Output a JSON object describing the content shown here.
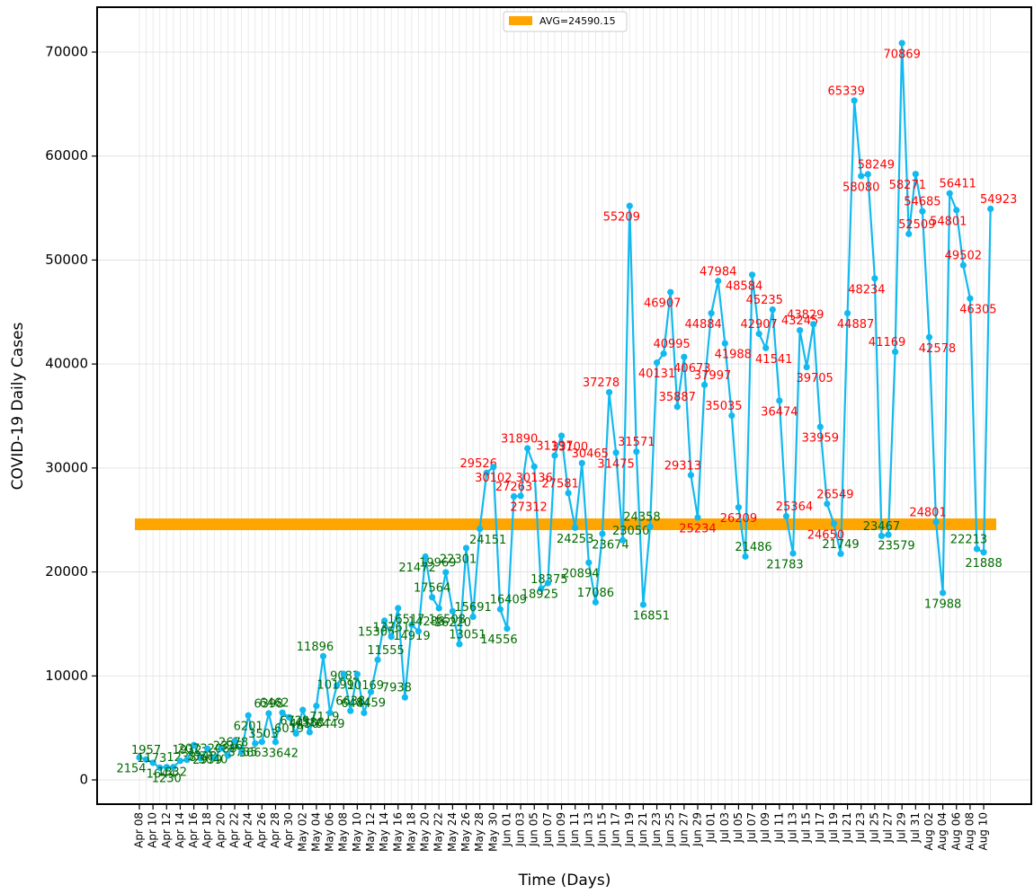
{
  "chart_data": {
    "type": "line",
    "x_label": "Time (Days)",
    "y_label": "COVID-19 Daily Cases",
    "categories": [
      "Apr 08",
      null,
      "Apr 10",
      null,
      "Apr 12",
      null,
      "Apr 14",
      null,
      "Apr 16",
      null,
      "Apr 18",
      null,
      "Apr 20",
      null,
      "Apr 22",
      null,
      "Apr 24",
      null,
      "Apr 26",
      null,
      "Apr 28",
      null,
      "Apr 30",
      null,
      "May 02",
      null,
      "May 04",
      null,
      "May 06",
      null,
      "May 08",
      null,
      "May 10",
      null,
      "May 12",
      null,
      "May 14",
      null,
      "May 16",
      null,
      "May 18",
      null,
      "May 20",
      null,
      "May 22",
      null,
      "May 24",
      null,
      "May 26",
      null,
      "May 28",
      null,
      "May 30",
      null,
      "Jun 01",
      null,
      "Jun 03",
      null,
      "Jun 05",
      null,
      "Jun 07",
      null,
      "Jun 09",
      null,
      "Jun 11",
      null,
      "Jun 13",
      null,
      "Jun 15",
      null,
      "Jun 17",
      null,
      "Jun 19",
      null,
      "Jun 21",
      null,
      "Jun 23",
      null,
      "Jun 25",
      null,
      "Jun 27",
      null,
      "Jun 29",
      null,
      "Jul 01",
      null,
      "Jul 03",
      null,
      "Jul 05",
      null,
      "Jul 07",
      null,
      "Jul 09",
      null,
      "Jul 11",
      null,
      "Jul 13",
      null,
      "Jul 15",
      null,
      "Jul 17",
      null,
      "Jul 19",
      null,
      "Jul 21",
      null,
      "Jul 23",
      null,
      "Jul 25",
      null,
      "Jul 27",
      null,
      "Jul 29",
      null,
      "Jul 31",
      null,
      "Aug 02",
      null,
      "Aug 04",
      null,
      "Aug 06",
      null,
      "Aug 08",
      null,
      "Aug 10",
      null
    ],
    "series": [
      {
        "color": "#12b9ef",
        "values": [
          2154,
          1957,
          1644,
          1173,
          1230,
          1238,
          1832,
          1932,
          3348,
          2073,
          2999,
          2089,
          3040,
          2336,
          3735,
          2678,
          6201,
          3503,
          3663,
          6398,
          3642,
          6462,
          6019,
          4450,
          6729,
          4588,
          7119,
          11896,
          6449,
          9082,
          10199,
          6638,
          10169,
          6444,
          8459,
          11555,
          15305,
          13761,
          16517,
          7938,
          14919,
          14288,
          21472,
          17564,
          16508,
          19969,
          16220,
          13051,
          22301,
          15691,
          24151,
          29526,
          30102,
          16409,
          14556,
          27263,
          27312,
          31890,
          30136,
          18375,
          18925,
          31197,
          33100,
          27581,
          24253,
          30465,
          20894,
          17086,
          23674,
          37278,
          31475,
          23050,
          55209,
          31571,
          16851,
          24358,
          40131,
          40995,
          46907,
          35887,
          40673,
          29313,
          25234,
          37997,
          44884,
          47984,
          41988,
          35035,
          26209,
          21486,
          48584,
          42907,
          41541,
          45235,
          36474,
          25364,
          21783,
          43245,
          39705,
          43829,
          33959,
          26549,
          24650,
          21749,
          44887,
          65339,
          58080,
          58249,
          48234,
          23467,
          23579,
          41169,
          70869,
          52509,
          58271,
          54685,
          42578,
          24801,
          17988,
          56411,
          54801,
          49502,
          46305,
          22213,
          21888,
          54923
        ]
      }
    ],
    "average": {
      "value": 24590.15,
      "label": "AVG=24590.15",
      "color": "#ffa500"
    },
    "label_colors": {
      "above": "#ff0000",
      "below": "#006b00"
    },
    "ylim": [
      -2333,
      74320
    ],
    "yticks": [
      0,
      10000,
      20000,
      30000,
      40000,
      50000,
      60000,
      70000
    ],
    "grid": true,
    "legend": "upper center"
  }
}
